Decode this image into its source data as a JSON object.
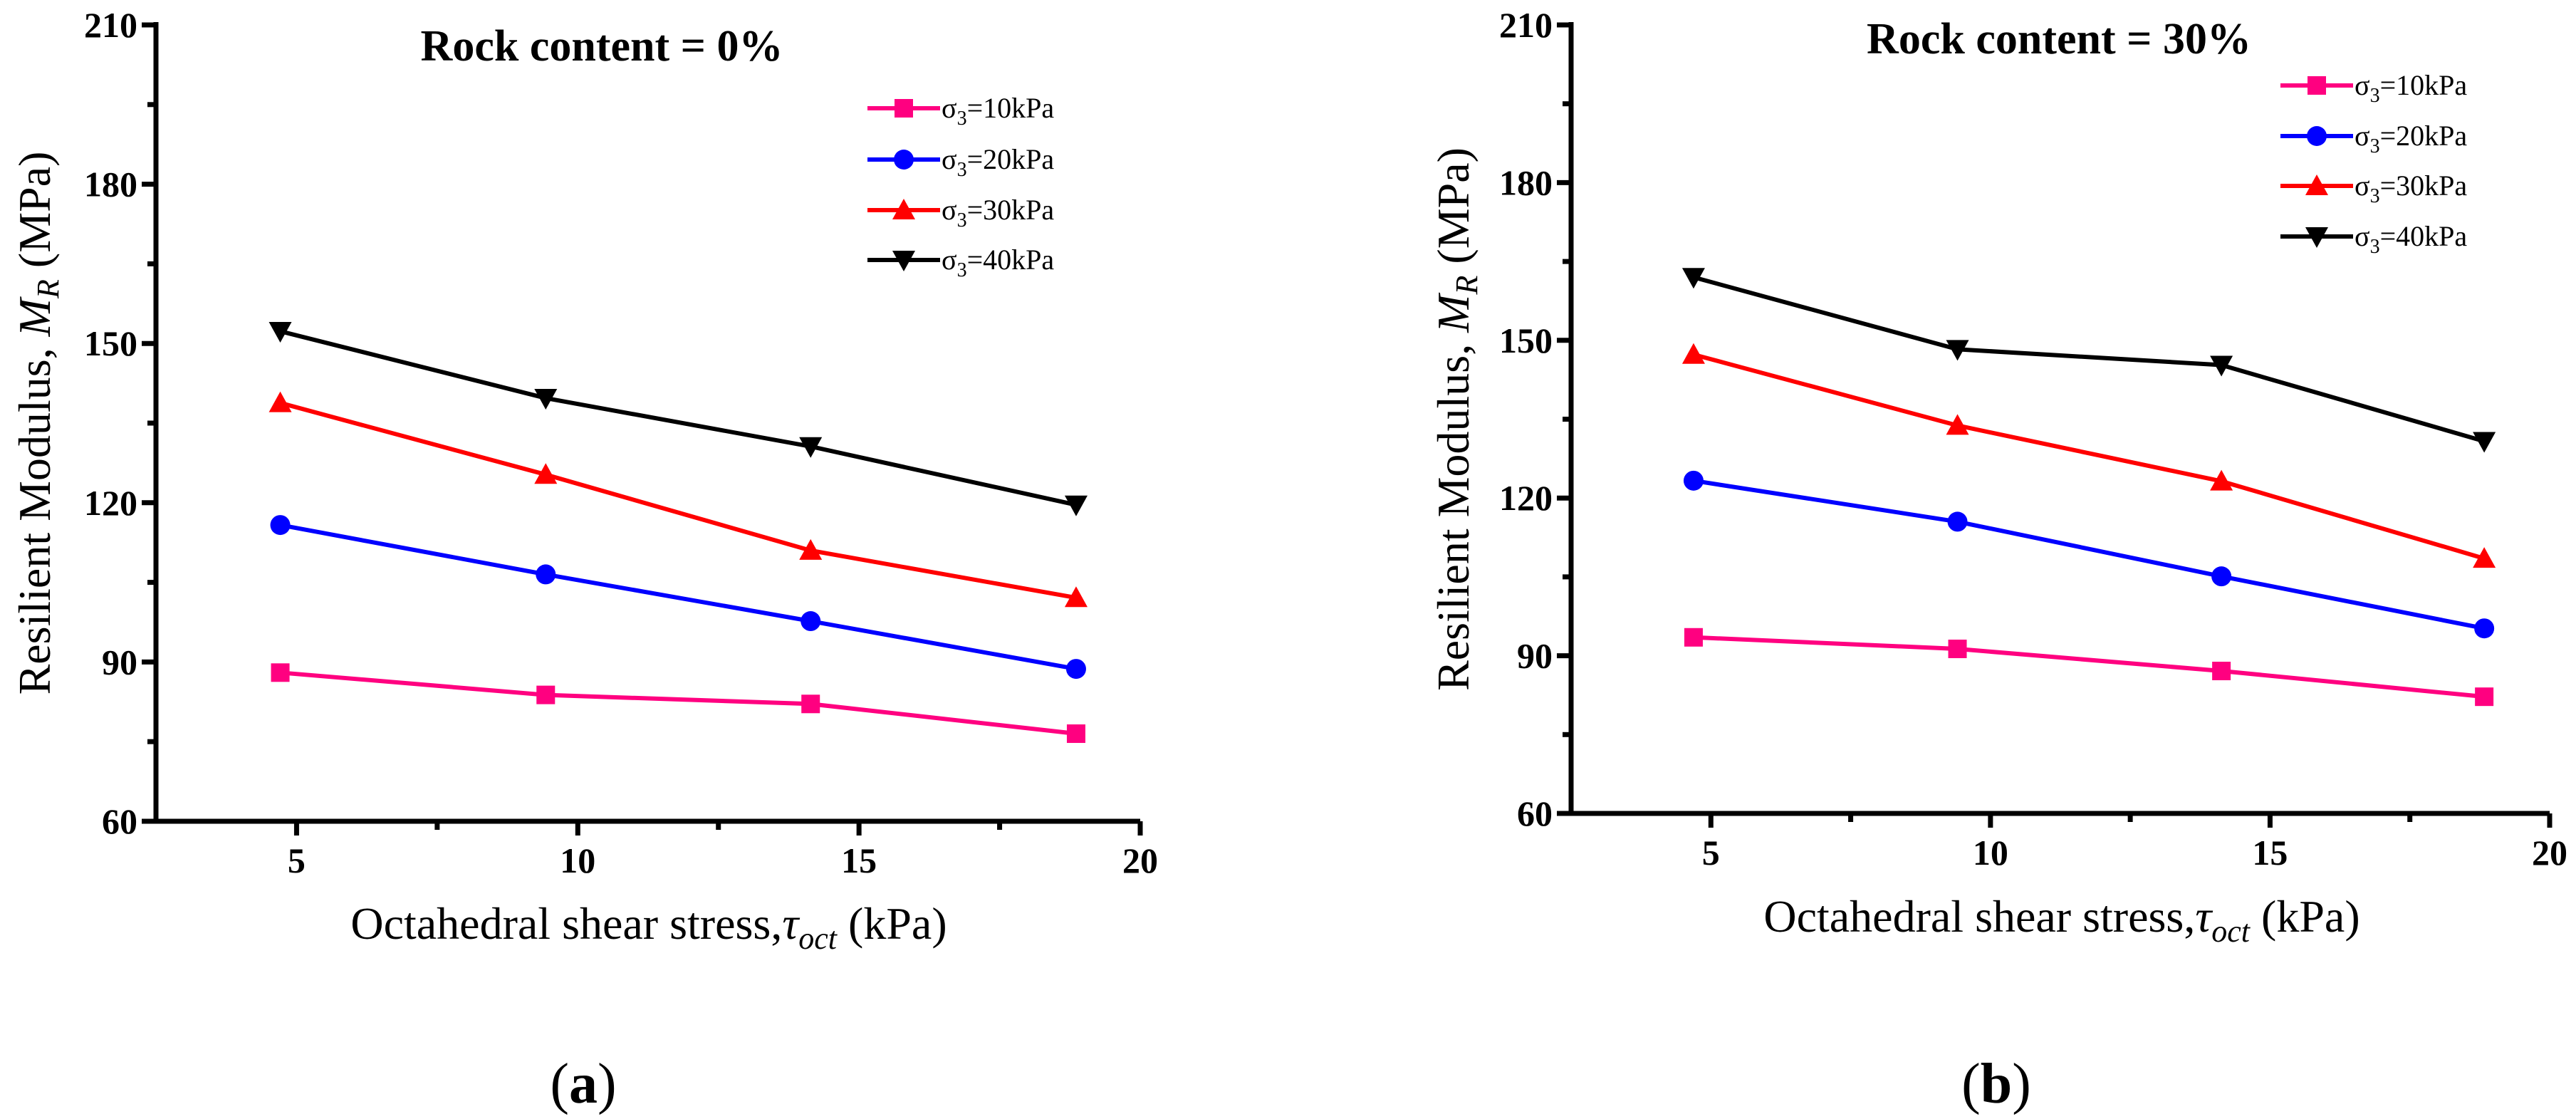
{
  "colors": {
    "s10": "#ff0080",
    "s20": "#0000ff",
    "s30": "#ff0000",
    "s40": "#000000"
  },
  "chart_data": [
    {
      "type": "line",
      "panel_label": "a",
      "title": "Rock content = 0%",
      "xlabel": {
        "prefix": "Octahedral shear stress,",
        "symbol": "τ",
        "sub": "oct",
        "suffix": " (kPa)"
      },
      "ylabel": {
        "prefix": "Resilient Modulus, ",
        "symbol": "M",
        "sub": "R",
        "suffix": " (MPa)"
      },
      "xlim": [
        2.5,
        20
      ],
      "ylim": [
        60,
        210
      ],
      "xticks": [
        5,
        10,
        15,
        20
      ],
      "yticks": [
        60,
        90,
        120,
        150,
        180,
        210
      ],
      "grid": false,
      "legend_position": "top-right",
      "x": [
        4.71,
        9.43,
        14.14,
        18.86
      ],
      "series": [
        {
          "name": "σ3=10kPa",
          "label": "σ",
          "sub": "3",
          "rest": "=10kPa",
          "marker": "square",
          "color_key": "s10",
          "values": [
            88.0,
            83.8,
            82.1,
            76.5
          ]
        },
        {
          "name": "σ3=20kPa",
          "label": "σ",
          "sub": "3",
          "rest": "=20kPa",
          "marker": "circle",
          "color_key": "s20",
          "values": [
            115.8,
            106.5,
            97.7,
            88.7
          ]
        },
        {
          "name": "σ3=30kPa",
          "label": "σ",
          "sub": "3",
          "rest": "=30kPa",
          "marker": "triangle-up",
          "color_key": "s30",
          "values": [
            138.8,
            125.3,
            111.0,
            102.1
          ]
        },
        {
          "name": "σ3=40kPa",
          "label": "σ",
          "sub": "3",
          "rest": "=40kPa",
          "marker": "triangle-down",
          "color_key": "s40",
          "values": [
            152.3,
            139.7,
            130.6,
            119.6
          ]
        }
      ]
    },
    {
      "type": "line",
      "panel_label": "b",
      "title": "Rock content = 30%",
      "xlabel": {
        "prefix": "Octahedral shear stress,",
        "symbol": "τ",
        "sub": "oct",
        "suffix": " (kPa)"
      },
      "ylabel": {
        "prefix": "Resilient Modulus, ",
        "symbol": "M",
        "sub": "R",
        "suffix": " (MPa)"
      },
      "xlim": [
        2.5,
        20
      ],
      "ylim": [
        60,
        210
      ],
      "xticks": [
        5,
        10,
        15,
        20
      ],
      "yticks": [
        60,
        90,
        120,
        150,
        180,
        210
      ],
      "grid": false,
      "legend_position": "top-right",
      "x": [
        4.69,
        9.41,
        14.13,
        18.83
      ],
      "series": [
        {
          "name": "σ3=10kPa",
          "label": "σ",
          "sub": "3",
          "rest": "=10kPa",
          "marker": "square",
          "color_key": "s10",
          "values": [
            93.5,
            91.3,
            87.1,
            82.2
          ]
        },
        {
          "name": "σ3=20kPa",
          "label": "σ",
          "sub": "3",
          "rest": "=20kPa",
          "marker": "circle",
          "color_key": "s20",
          "values": [
            123.3,
            115.5,
            105.1,
            95.2
          ]
        },
        {
          "name": "σ3=30kPa",
          "label": "σ",
          "sub": "3",
          "rest": "=30kPa",
          "marker": "triangle-up",
          "color_key": "s30",
          "values": [
            147.3,
            133.8,
            123.2,
            108.5
          ]
        },
        {
          "name": "σ3=40kPa",
          "label": "σ",
          "sub": "3",
          "rest": "=40kPa",
          "marker": "triangle-down",
          "color_key": "s40",
          "values": [
            162.0,
            148.3,
            145.3,
            130.8
          ]
        }
      ]
    }
  ]
}
